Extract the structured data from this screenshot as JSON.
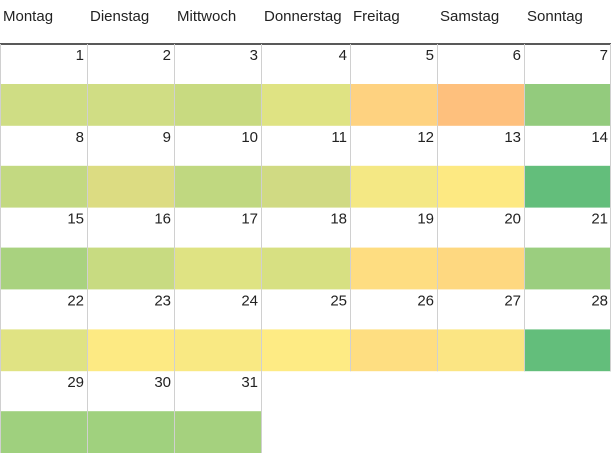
{
  "calendar": {
    "weekdays": [
      "Montag",
      "Dienstag",
      "Mittwoch",
      "Donnerstag",
      "Freitag",
      "Samstag",
      "Sonntag"
    ],
    "weeks": [
      [
        {
          "day": 1,
          "color": "#cfdd84"
        },
        {
          "day": 2,
          "color": "#d0dd84"
        },
        {
          "day": 3,
          "color": "#c8da80"
        },
        {
          "day": 4,
          "color": "#dfe383"
        },
        {
          "day": 5,
          "color": "#fed280"
        },
        {
          "day": 6,
          "color": "#fec07d"
        },
        {
          "day": 7,
          "color": "#93cb7d"
        }
      ],
      [
        {
          "day": 8,
          "color": "#c3d981"
        },
        {
          "day": 9,
          "color": "#dcdc82"
        },
        {
          "day": 10,
          "color": "#c0d880"
        },
        {
          "day": 11,
          "color": "#d0da83"
        },
        {
          "day": 12,
          "color": "#f4e884"
        },
        {
          "day": 13,
          "color": "#fde982"
        },
        {
          "day": 14,
          "color": "#63be7b"
        }
      ],
      [
        {
          "day": 15,
          "color": "#a9d27f"
        },
        {
          "day": 16,
          "color": "#c8db81"
        },
        {
          "day": 17,
          "color": "#dfe383"
        },
        {
          "day": 18,
          "color": "#d7e082"
        },
        {
          "day": 19,
          "color": "#fedd81"
        },
        {
          "day": 20,
          "color": "#fed880"
        },
        {
          "day": 21,
          "color": "#9bce7f"
        }
      ],
      [
        {
          "day": 22,
          "color": "#e0e383"
        },
        {
          "day": 23,
          "color": "#fdea83"
        },
        {
          "day": 24,
          "color": "#f9e983"
        },
        {
          "day": 25,
          "color": "#feeb84"
        },
        {
          "day": 26,
          "color": "#fede81"
        },
        {
          "day": 27,
          "color": "#fbe583"
        },
        {
          "day": 28,
          "color": "#63be7b"
        }
      ],
      [
        {
          "day": 29,
          "color": "#9fd07e"
        },
        {
          "day": 30,
          "color": "#a0d17e"
        },
        {
          "day": 31,
          "color": "#a5d17e"
        }
      ]
    ]
  }
}
